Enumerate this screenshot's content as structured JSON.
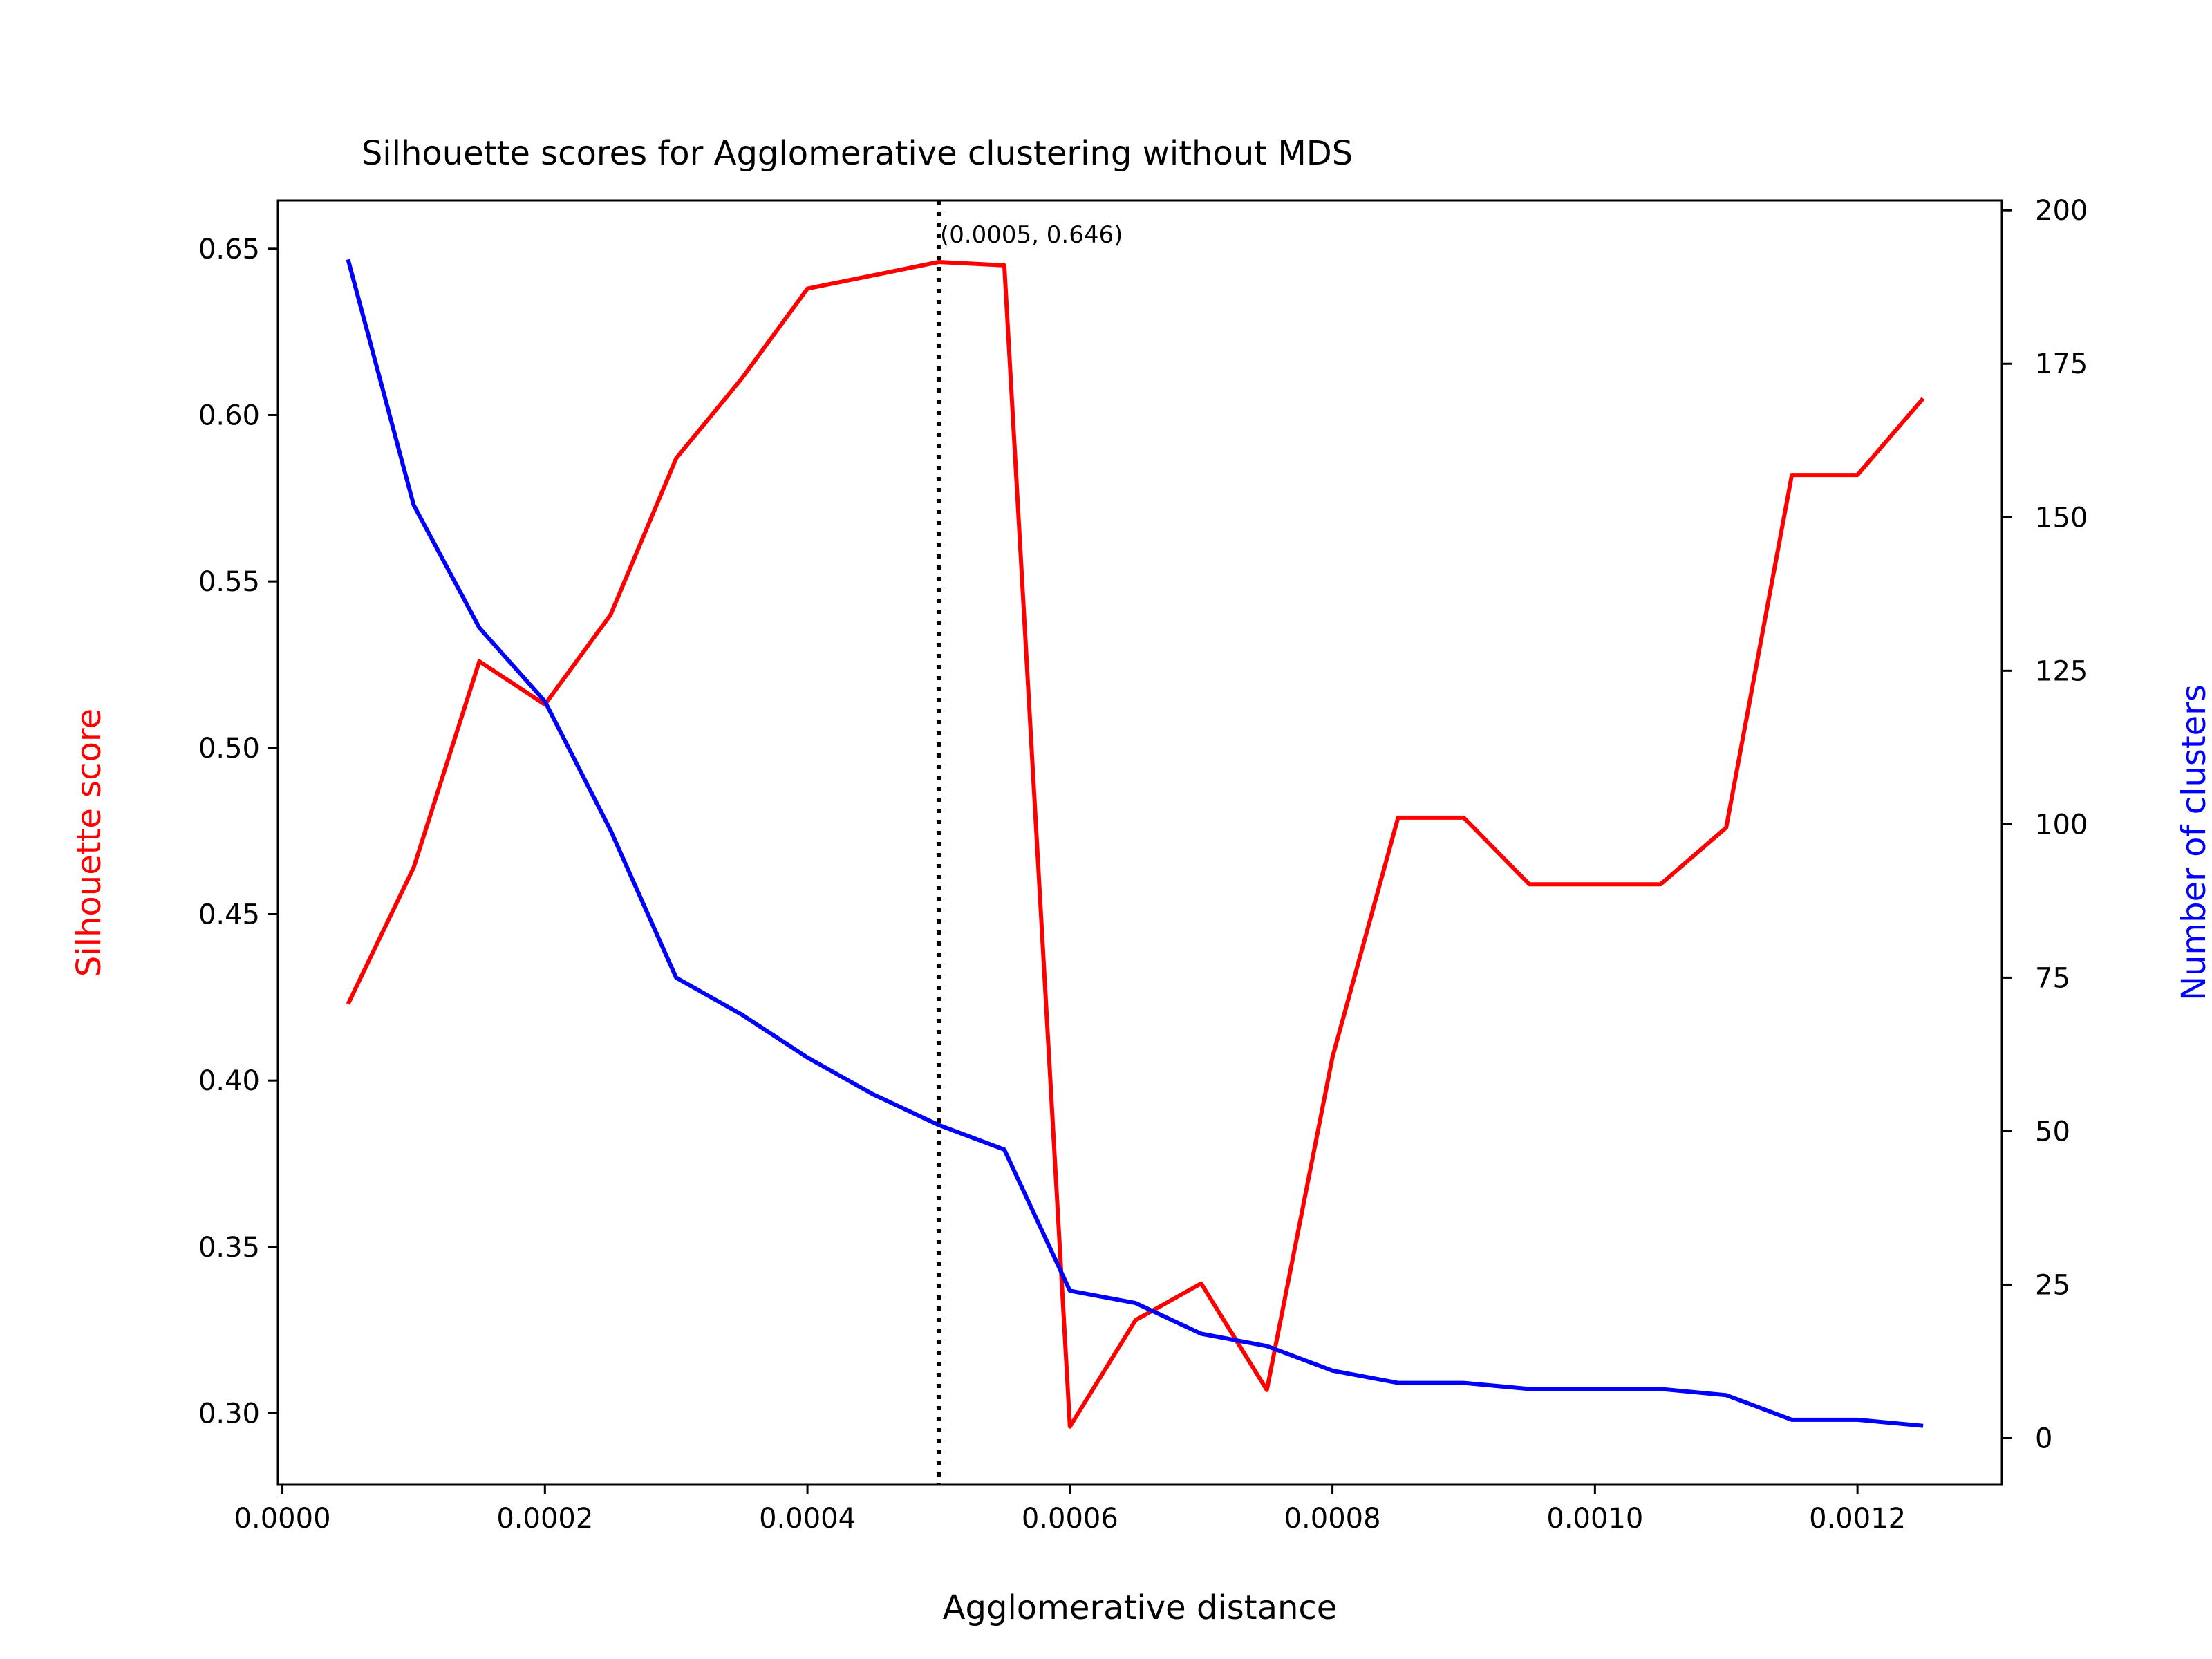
{
  "chart_data": {
    "type": "line",
    "title": "Silhouette scores for Agglomerative clustering without MDS",
    "xlabel": "Agglomerative distance",
    "ylabel_left": "Silhouette score",
    "ylabel_right": "Number of clusters",
    "xlim": [
      -3.45e-06,
      0.00131
    ],
    "ylim_left": [
      0.2785,
      0.6645
    ],
    "ylim_right": [
      -7.6,
      201.6
    ],
    "x_ticks": [
      "0.0000",
      "0.0002",
      "0.0004",
      "0.0006",
      "0.0008",
      "0.0010",
      "0.0012"
    ],
    "x_tick_values": [
      0.0,
      0.0002,
      0.0004,
      0.0006,
      0.0008,
      0.001,
      0.0012
    ],
    "y_left_ticks": [
      "0.30",
      "0.35",
      "0.40",
      "0.45",
      "0.50",
      "0.55",
      "0.60",
      "0.65"
    ],
    "y_left_tick_values": [
      0.3,
      0.35,
      0.4,
      0.45,
      0.5,
      0.55,
      0.6,
      0.65
    ],
    "y_right_ticks": [
      "0",
      "25",
      "50",
      "75",
      "100",
      "125",
      "150",
      "175",
      "200"
    ],
    "y_right_tick_values": [
      0,
      25,
      50,
      75,
      100,
      125,
      150,
      175,
      200
    ],
    "x": [
      5e-05,
      0.0001,
      0.00015,
      0.0002,
      0.00025,
      0.0003,
      0.00035,
      0.0004,
      0.00045,
      0.0005,
      0.00055,
      0.0006,
      0.00065,
      0.0007,
      0.00075,
      0.0008,
      0.00085,
      0.0009,
      0.00095,
      0.001,
      0.00105,
      0.0011,
      0.00115,
      0.0012,
      0.00125
    ],
    "series": [
      {
        "axis": "left",
        "color": "#ff0000",
        "values": [
          0.423,
          0.464,
          0.526,
          0.513,
          0.54,
          0.587,
          0.611,
          0.638,
          0.642,
          0.646,
          0.645,
          0.296,
          0.328,
          0.339,
          0.307,
          0.407,
          0.479,
          0.479,
          0.459,
          0.459,
          0.459,
          0.476,
          0.582,
          0.582,
          0.605
        ]
      },
      {
        "axis": "right",
        "color": "#0000ff",
        "values": [
          192,
          152,
          132,
          120,
          99,
          75,
          69,
          62,
          56,
          51,
          47,
          24,
          22,
          17,
          15,
          11,
          9,
          9,
          8,
          8,
          8,
          7,
          3,
          3,
          2
        ]
      }
    ],
    "vline": {
      "x": 0.0005,
      "style": "dotted",
      "color": "#000000"
    },
    "annotation": {
      "text": "(0.0005, 0.646)",
      "x": 0.0005,
      "y": 0.646
    },
    "grid": false,
    "legend": "none"
  }
}
